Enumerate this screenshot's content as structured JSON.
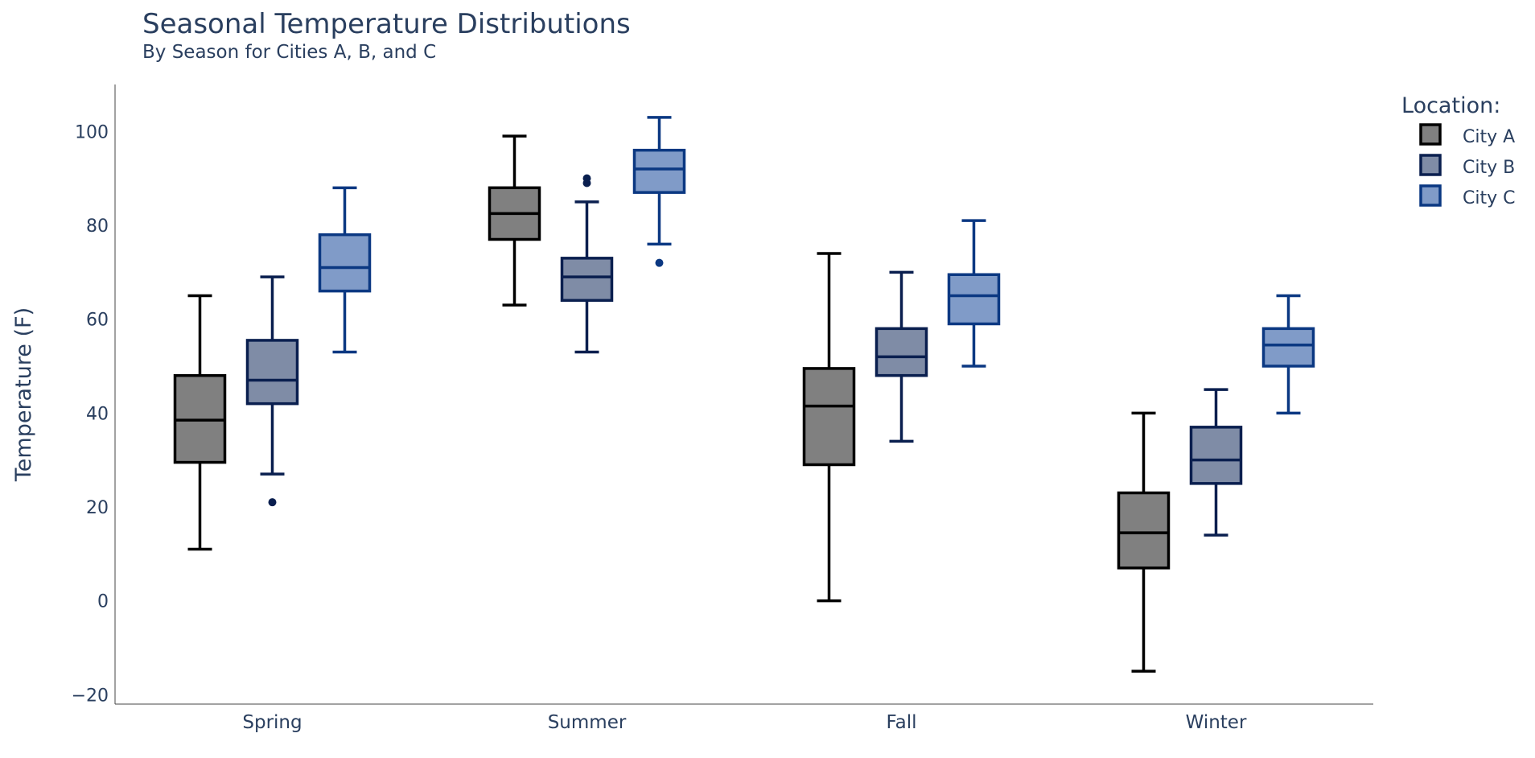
{
  "chart_data": {
    "type": "box",
    "title": "Seasonal Temperature Distributions",
    "subtitle": "By Season for Cities A, B, and C",
    "xlabel": "",
    "ylabel": "Temperature (F)",
    "ylim": [
      -22,
      110
    ],
    "yticks": [
      -20,
      0,
      20,
      40,
      60,
      80,
      100
    ],
    "ytick_labels": [
      "−20",
      "0",
      "20",
      "40",
      "60",
      "80",
      "100"
    ],
    "grid": false,
    "legend": {
      "title": "Location:",
      "placement": "top-right"
    },
    "categories": [
      "Spring",
      "Summer",
      "Fall",
      "Winter"
    ],
    "series": [
      {
        "name": "City A",
        "fill": "#808080",
        "line": "#000000",
        "boxes": [
          {
            "min": 11,
            "q1": 29.5,
            "median": 38.5,
            "q3": 48,
            "max": 65,
            "outliers": []
          },
          {
            "min": 63,
            "q1": 77,
            "median": 82.5,
            "q3": 88,
            "max": 99,
            "outliers": []
          },
          {
            "min": 0,
            "q1": 29,
            "median": 41.5,
            "q3": 49.5,
            "max": 74,
            "outliers": []
          },
          {
            "min": -15,
            "q1": 7,
            "median": 14.5,
            "q3": 23,
            "max": 40,
            "outliers": []
          }
        ]
      },
      {
        "name": "City B",
        "fill": "#7f8ca6",
        "line": "#0a1f4f",
        "boxes": [
          {
            "min": 27,
            "q1": 42,
            "median": 47,
            "q3": 55.5,
            "max": 69,
            "outliers": [
              21
            ]
          },
          {
            "min": 53,
            "q1": 64,
            "median": 69,
            "q3": 73,
            "max": 85,
            "outliers": [
              89,
              90
            ]
          },
          {
            "min": 34,
            "q1": 48,
            "median": 52,
            "q3": 58,
            "max": 70,
            "outliers": []
          },
          {
            "min": 14,
            "q1": 25,
            "median": 30,
            "q3": 37,
            "max": 45,
            "outliers": []
          }
        ]
      },
      {
        "name": "City C",
        "fill": "#809bc8",
        "line": "#0b3882",
        "boxes": [
          {
            "min": 53,
            "q1": 66,
            "median": 71,
            "q3": 78,
            "max": 88,
            "outliers": []
          },
          {
            "min": 76,
            "q1": 87,
            "median": 92,
            "q3": 96,
            "max": 103,
            "outliers": [
              72
            ]
          },
          {
            "min": 50,
            "q1": 59,
            "median": 65,
            "q3": 69.5,
            "max": 81,
            "outliers": []
          },
          {
            "min": 40,
            "q1": 50,
            "median": 54.5,
            "q3": 58,
            "max": 65,
            "outliers": []
          }
        ]
      }
    ]
  }
}
